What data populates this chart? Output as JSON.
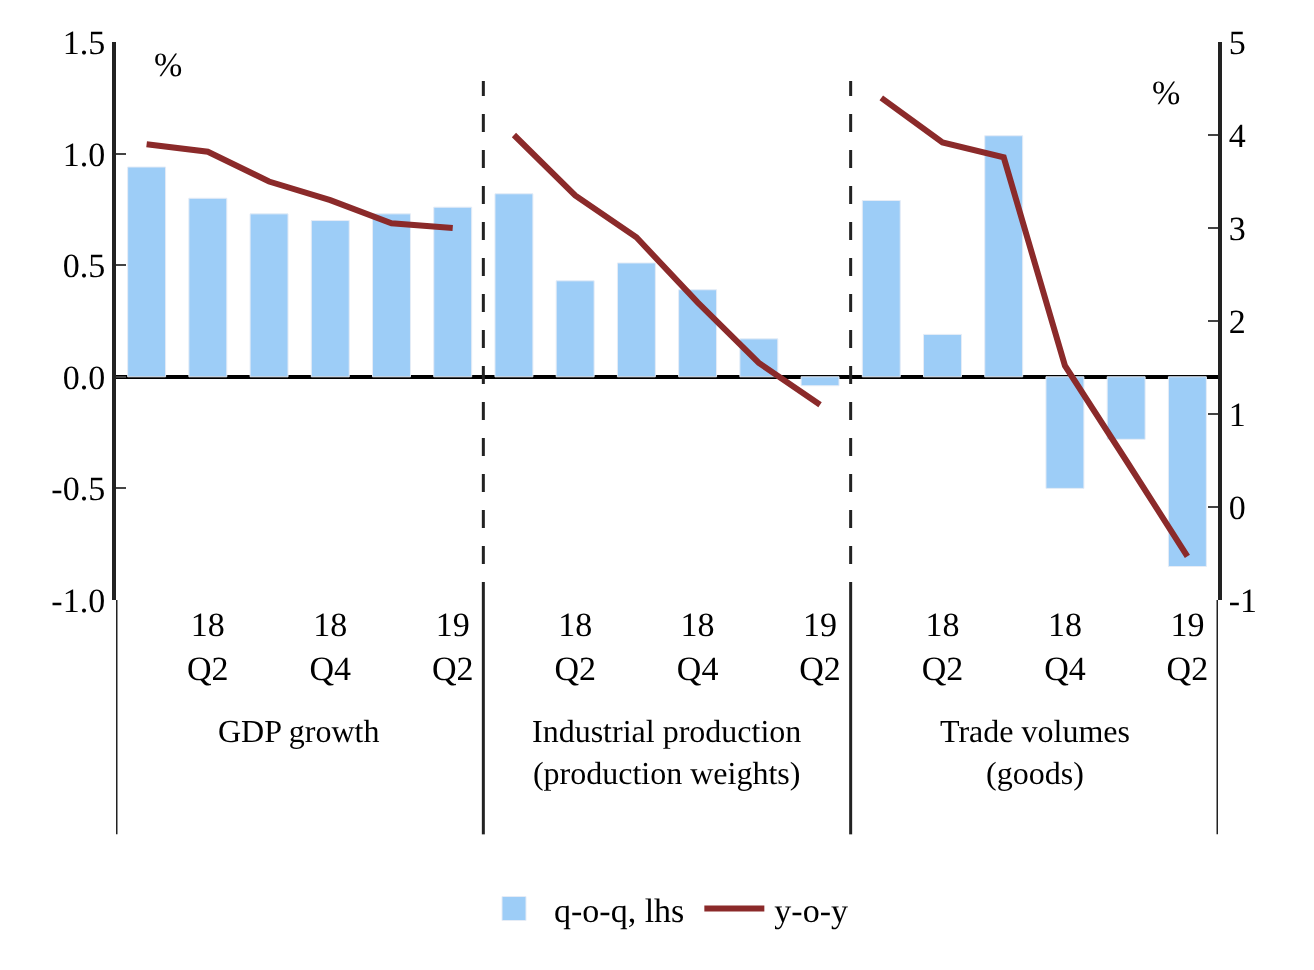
{
  "chart_data": {
    "type": "bar",
    "categories": [
      null,
      "18\nQ2",
      null,
      "18\nQ4",
      null,
      "19\nQ2",
      null,
      "18\nQ2",
      null,
      "18\nQ4",
      null,
      "19\nQ2",
      null,
      "18\nQ2",
      null,
      "18\nQ4",
      null,
      "19\nQ2"
    ],
    "series": [
      {
        "name": "q-o-q, lhs",
        "color": "#9dcdf7",
        "values": [
          0.94,
          0.8,
          0.73,
          0.7,
          0.73,
          0.76,
          0.82,
          0.43,
          0.51,
          0.39,
          0.17,
          -0.04,
          0.79,
          0.19,
          1.08,
          -0.5,
          -0.28,
          -0.85
        ]
      },
      {
        "name": "y-o-y",
        "type": "line",
        "axis": "y2",
        "color": "#8b2a2a",
        "values": [
          3.9,
          3.82,
          3.5,
          3.3,
          3.05,
          3.0,
          null,
          null,
          null,
          null,
          null,
          null,
          null,
          null,
          null,
          null,
          null,
          null
        ]
      },
      {
        "type": "line",
        "axis": "y2",
        "color": "#8b2a2a",
        "values": [
          null,
          null,
          null,
          null,
          null,
          null,
          4.0,
          3.35,
          2.9,
          2.2,
          1.55,
          1.1,
          null,
          null,
          null,
          null,
          null,
          null
        ]
      },
      {
        "type": "line",
        "axis": "y2",
        "color": "#8b2a2a",
        "values": [
          null,
          null,
          null,
          null,
          null,
          null,
          null,
          null,
          null,
          null,
          null,
          null,
          4.4,
          3.92,
          3.76,
          1.52,
          0.5,
          -0.53
        ]
      }
    ],
    "ylabel": "%",
    "y2label": "%",
    "ylim": [
      -1,
      1.5
    ],
    "yticks": [
      {
        "value": -1,
        "label": "-1.0"
      },
      {
        "value": -0.5,
        "label": "-0.5"
      },
      {
        "value": 0,
        "label": "0.0"
      },
      {
        "value": 0.5,
        "label": "0.5"
      },
      {
        "value": 1,
        "label": "1.0"
      },
      {
        "value": 1.5,
        "label": "1.5"
      }
    ],
    "y2lim": [
      -1,
      5
    ],
    "y2ticks": [
      -1,
      0,
      1,
      2,
      3,
      4,
      5
    ],
    "annotations": [
      "GDP growth",
      "Industrial production\n(production weights)",
      "Trade volumes\n(goods)"
    ],
    "legend": "bottom",
    "marker": "none",
    "line_style": "solid"
  }
}
